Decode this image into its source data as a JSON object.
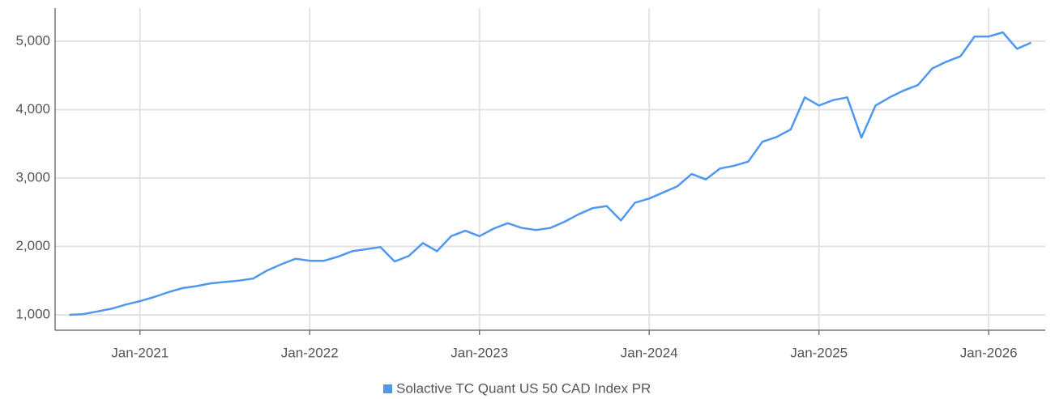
{
  "chart_data": {
    "type": "line",
    "x": [
      "2020-08",
      "2020-09",
      "2020-10",
      "2020-11",
      "2020-12",
      "2021-01",
      "2021-02",
      "2021-03",
      "2021-04",
      "2021-05",
      "2021-06",
      "2021-07",
      "2021-08",
      "2021-09",
      "2021-10",
      "2021-11",
      "2021-12",
      "2022-01",
      "2022-02",
      "2022-03",
      "2022-04",
      "2022-05",
      "2022-06",
      "2022-07",
      "2022-08",
      "2022-09",
      "2022-10",
      "2022-11",
      "2022-12",
      "2023-01",
      "2023-02",
      "2023-03",
      "2023-04",
      "2023-05",
      "2023-06",
      "2023-07",
      "2023-08",
      "2023-09",
      "2023-10",
      "2023-11",
      "2023-12",
      "2024-01",
      "2024-02",
      "2024-03",
      "2024-04",
      "2024-05",
      "2024-06",
      "2024-07",
      "2024-08",
      "2024-09",
      "2024-10",
      "2024-11",
      "2024-12",
      "2025-01",
      "2025-02",
      "2025-03",
      "2025-04",
      "2025-05",
      "2025-06",
      "2025-07",
      "2025-08",
      "2025-09",
      "2025-10",
      "2025-11",
      "2025-12",
      "2026-01",
      "2026-02",
      "2026-03",
      "2026-04"
    ],
    "series": [
      {
        "name": "Solactive TC Quant US 50 CAD Index PR",
        "color": "#4f97f0",
        "values": [
          1000,
          1010,
          1050,
          1090,
          1150,
          1200,
          1260,
          1330,
          1390,
          1420,
          1460,
          1480,
          1500,
          1530,
          1650,
          1740,
          1820,
          1790,
          1790,
          1850,
          1930,
          1960,
          1990,
          1780,
          1860,
          2050,
          1930,
          2150,
          2230,
          2150,
          2260,
          2340,
          2270,
          2240,
          2270,
          2360,
          2470,
          2560,
          2590,
          2380,
          2640,
          2700,
          2790,
          2880,
          3060,
          2980,
          3140,
          3180,
          3240,
          3530,
          3600,
          3710,
          4180,
          4060,
          4140,
          4180,
          3590,
          4060,
          4180,
          4280,
          4360,
          4600,
          4700,
          4780,
          5070,
          5070,
          5130,
          4890,
          4980
        ]
      }
    ],
    "xlim": [
      "2020-07",
      "2026-05"
    ],
    "xticks": [
      {
        "value": "2021-01",
        "label": "Jan-2021"
      },
      {
        "value": "2022-01",
        "label": "Jan-2022"
      },
      {
        "value": "2023-01",
        "label": "Jan-2023"
      },
      {
        "value": "2024-01",
        "label": "Jan-2024"
      },
      {
        "value": "2025-01",
        "label": "Jan-2025"
      },
      {
        "value": "2026-01",
        "label": "Jan-2026"
      }
    ],
    "ylim": [
      775,
      5485
    ],
    "yticks": [
      {
        "value": 1000,
        "label": "1,000"
      },
      {
        "value": 2000,
        "label": "2,000"
      },
      {
        "value": 3000,
        "label": "3,000"
      },
      {
        "value": 4000,
        "label": "4,000"
      },
      {
        "value": 5000,
        "label": "5,000"
      }
    ],
    "grid": true,
    "legend": "bottom"
  }
}
